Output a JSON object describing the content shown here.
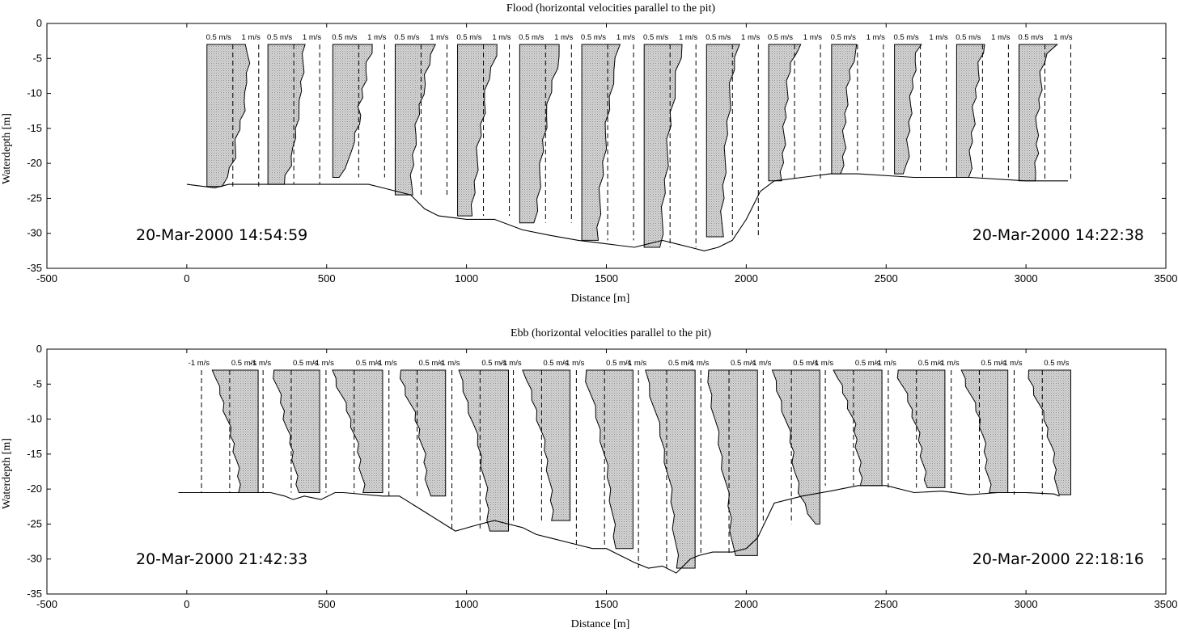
{
  "chart_data": [
    {
      "type": "area",
      "title": "Flood (horizontal velocities parallel to the pit)",
      "xlabel": "Distance [m]",
      "ylabel": "Waterdepth [m]",
      "xlim": [
        -500,
        3500
      ],
      "ylim": [
        -35,
        0
      ],
      "xticks": [
        "-500",
        "0",
        "500",
        "1000",
        "1500",
        "2000",
        "2500",
        "3000",
        "3500"
      ],
      "yticks": [
        "0",
        "-5",
        "-10",
        "-15",
        "-20",
        "-25",
        "-30",
        "-35"
      ],
      "grid": false,
      "start_time": "20-Mar-2000 14:54:59",
      "end_time": "20-Mar-2000 14:22:38",
      "bed_profile": {
        "x": [
          0,
          100,
          150,
          200,
          300,
          450,
          500,
          650,
          700,
          800,
          850,
          900,
          1000,
          1050,
          1100,
          1200,
          1300,
          1400,
          1500,
          1600,
          1650,
          1700,
          1750,
          1800,
          1850,
          1900,
          1950,
          2000,
          2050,
          2100,
          2200,
          2300,
          2400,
          2600,
          2800,
          3000,
          3100,
          3150
        ],
        "y": [
          -23,
          -23.5,
          -23,
          -23,
          -23,
          -23,
          -23,
          -23,
          -23.5,
          -24.5,
          -26.5,
          -27.5,
          -28,
          -28,
          -28,
          -29.5,
          -30.3,
          -31,
          -31.5,
          -32,
          -31.5,
          -31,
          -31.5,
          -32,
          -32.5,
          -32,
          -31,
          -28,
          -24,
          -22.5,
          -22,
          -21.5,
          -21.5,
          -22,
          -22,
          -22.5,
          -22.5,
          -22.5
        ]
      },
      "profiles": [
        {
          "x0": 72,
          "bottom": -23.3,
          "scale_labels": [
            "0.5 m/s",
            "1 m/s"
          ],
          "shape": [
            0.78,
            0.78,
            0.79,
            0.78,
            0.75,
            0.77,
            0.72,
            0.7,
            0.66,
            0.62,
            0.58,
            0.55,
            0.52,
            0.45,
            0.38,
            0.33
          ]
        },
        {
          "x0": 290,
          "bottom": -23.0,
          "scale_labels": [
            "0.5 m/s",
            "1 m/s"
          ],
          "shape": [
            0.7,
            0.7,
            0.68,
            0.66,
            0.65,
            0.63,
            0.64,
            0.6,
            0.56,
            0.55,
            0.52,
            0.52,
            0.45,
            0.42,
            0.35,
            0.3
          ]
        },
        {
          "x0": 522,
          "bottom": -22.0,
          "scale_labels": [
            "0.5 m/s",
            "1 m/s"
          ],
          "shape": [
            0.78,
            0.74,
            0.68,
            0.64,
            0.62,
            0.58,
            0.56,
            0.52,
            0.54,
            0.48,
            0.44,
            0.4,
            0.4,
            0.3,
            0.2,
            0.14
          ]
        },
        {
          "x0": 745,
          "bottom": -24.5,
          "scale_labels": [
            "0.5 m/s",
            "1 m/s"
          ],
          "shape": [
            0.74,
            0.7,
            0.65,
            0.6,
            0.58,
            0.52,
            0.48,
            0.45,
            0.42,
            0.4,
            0.37,
            0.35,
            0.34,
            0.33,
            0.32,
            0.3
          ]
        },
        {
          "x0": 968,
          "bottom": -27.5,
          "scale_labels": [
            "0.5 m/s",
            "1 m/s"
          ],
          "shape": [
            0.76,
            0.72,
            0.66,
            0.6,
            0.56,
            0.52,
            0.5,
            0.46,
            0.44,
            0.4,
            0.38,
            0.36,
            0.34,
            0.32,
            0.3,
            0.28
          ]
        },
        {
          "x0": 1190,
          "bottom": -28.5,
          "scale_labels": [
            "0.5 m/s",
            "1 m/s"
          ],
          "shape": [
            0.8,
            0.76,
            0.7,
            0.64,
            0.6,
            0.56,
            0.52,
            0.49,
            0.46,
            0.44,
            0.42,
            0.39,
            0.37,
            0.35,
            0.33,
            0.31
          ]
        },
        {
          "x0": 1412,
          "bottom": -31.0,
          "scale_labels": [
            "0.5 m/s",
            "1 m/s"
          ],
          "shape": [
            0.72,
            0.68,
            0.62,
            0.58,
            0.55,
            0.52,
            0.49,
            0.46,
            0.44,
            0.42,
            0.4,
            0.37,
            0.35,
            0.33,
            0.31,
            0.3
          ]
        },
        {
          "x0": 1635,
          "bottom": -32.0,
          "scale_labels": [
            "0.5 m/s",
            "1 m/s"
          ],
          "shape": [
            0.75,
            0.7,
            0.64,
            0.6,
            0.56,
            0.52,
            0.5,
            0.47,
            0.45,
            0.43,
            0.41,
            0.39,
            0.37,
            0.35,
            0.33,
            0.32
          ]
        },
        {
          "x0": 1858,
          "bottom": -30.5,
          "scale_labels": [
            "0.5 m/s",
            "1 m/s"
          ],
          "shape": [
            0.6,
            0.56,
            0.52,
            0.48,
            0.45,
            0.43,
            0.41,
            0.39,
            0.38,
            0.36,
            0.34,
            0.33,
            0.32,
            0.31,
            0.3,
            0.29
          ]
        },
        {
          "x0": 2080,
          "bottom": -22.5,
          "scale_labels": [
            "0.5 m/s",
            "1 m/s"
          ],
          "shape": [
            0.62,
            0.5,
            0.44,
            0.4,
            0.38,
            0.36,
            0.34,
            0.33,
            0.32,
            0.31,
            0.3,
            0.29,
            0.28,
            0.27,
            0.26,
            0.25
          ]
        },
        {
          "x0": 2305,
          "bottom": -21.5,
          "scale_labels": [
            "0.5 m/s",
            "1 m/s"
          ],
          "shape": [
            0.52,
            0.46,
            0.4,
            0.36,
            0.34,
            0.32,
            0.3,
            0.28,
            0.27,
            0.26,
            0.25,
            0.24,
            0.24,
            0.23,
            0.22,
            0.21
          ]
        },
        {
          "x0": 2530,
          "bottom": -21.5,
          "scale_labels": [
            "0.5 m/s",
            "1 m/s"
          ],
          "shape": [
            0.5,
            0.44,
            0.4,
            0.38,
            0.36,
            0.34,
            0.33,
            0.31,
            0.3,
            0.29,
            0.28,
            0.27,
            0.26,
            0.25,
            0.24,
            0.15
          ]
        },
        {
          "x0": 2752,
          "bottom": -22.0,
          "scale_labels": [
            "0.5 m/s",
            "1 m/s"
          ],
          "shape": [
            0.56,
            0.5,
            0.45,
            0.42,
            0.4,
            0.38,
            0.36,
            0.34,
            0.33,
            0.32,
            0.3,
            0.29,
            0.28,
            0.27,
            0.26,
            0.25
          ]
        },
        {
          "x0": 2975,
          "bottom": -22.5,
          "scale_labels": [
            "0.5 m/s",
            "1 m/s"
          ],
          "shape": [
            0.7,
            0.56,
            0.48,
            0.44,
            0.42,
            0.41,
            0.4,
            0.38,
            0.36,
            0.34,
            0.34,
            0.35,
            0.36,
            0.34,
            0.32,
            0.28
          ]
        }
      ]
    },
    {
      "type": "area",
      "title": "Ebb (horizontal velocities parallel to the pit)",
      "xlabel": "Distance [m]",
      "ylabel": "Waterdepth [m]",
      "xlim": [
        -500,
        3500
      ],
      "ylim": [
        -35,
        0
      ],
      "xticks": [
        "-500",
        "0",
        "500",
        "1000",
        "1500",
        "2000",
        "2500",
        "3000",
        "3500"
      ],
      "yticks": [
        "0",
        "-5",
        "-10",
        "-15",
        "-20",
        "-25",
        "-30",
        "-35"
      ],
      "grid": false,
      "start_time": "20-Mar-2000 21:42:33",
      "end_time": "20-Mar-2000 22:18:16",
      "bed_profile": {
        "x": [
          -30,
          50,
          150,
          250,
          300,
          350,
          380,
          420,
          480,
          530,
          560,
          700,
          760,
          860,
          960,
          1050,
          1100,
          1200,
          1250,
          1300,
          1400,
          1450,
          1500,
          1600,
          1650,
          1700,
          1750,
          1800,
          1830,
          1880,
          1950,
          2000,
          2040,
          2100,
          2200,
          2300,
          2400,
          2500,
          2600,
          2700,
          2800,
          2900,
          3000,
          3100,
          3120
        ],
        "y": [
          -20.5,
          -20.5,
          -20.5,
          -20.5,
          -20.5,
          -21,
          -21.5,
          -21,
          -21.5,
          -20.5,
          -20.5,
          -21,
          -21,
          -23.5,
          -26,
          -25,
          -24.5,
          -25.5,
          -26.5,
          -27,
          -28,
          -28.5,
          -28.5,
          -30.5,
          -31.3,
          -31,
          -32,
          -30,
          -29.5,
          -29,
          -29,
          -28.5,
          -27,
          -22,
          -21,
          -20.3,
          -19.5,
          -19.5,
          -20.5,
          -20.3,
          -20.8,
          -20.5,
          -20.5,
          -20.7,
          -21
        ]
      },
      "profiles": [
        {
          "x0": 70,
          "bottom": -20.5,
          "scale_labels": [
            "-1 m/s",
            "0.5 m/s"
          ],
          "shape": [
            0.85,
            0.82,
            0.78,
            0.72,
            0.68,
            0.64,
            0.6,
            0.56,
            0.52,
            0.48,
            0.45,
            0.42,
            0.4,
            0.38,
            0.36,
            0.34
          ]
        },
        {
          "x0": 290,
          "bottom": -20.5,
          "scale_labels": [
            "-1 m/s",
            "0.5 m/s"
          ],
          "shape": [
            0.9,
            0.86,
            0.82,
            0.78,
            0.74,
            0.7,
            0.67,
            0.64,
            0.6,
            0.56,
            0.53,
            0.5,
            0.48,
            0.46,
            0.44,
            0.42
          ]
        },
        {
          "x0": 515,
          "bottom": -20.5,
          "scale_labels": [
            "-1 m/s",
            "0.5 m/s"
          ],
          "shape": [
            0.95,
            0.92,
            0.86,
            0.8,
            0.74,
            0.68,
            0.63,
            0.58,
            0.54,
            0.5,
            0.47,
            0.44,
            0.42,
            0.4,
            0.38,
            0.36
          ]
        },
        {
          "x0": 740,
          "bottom": -21.0,
          "scale_labels": [
            "-1 m/s",
            "0.5 m/s"
          ],
          "shape": [
            0.9,
            0.86,
            0.8,
            0.74,
            0.68,
            0.62,
            0.57,
            0.52,
            0.48,
            0.45,
            0.42,
            0.4,
            0.38,
            0.36,
            0.34,
            0.32
          ]
        },
        {
          "x0": 965,
          "bottom": -26.0,
          "scale_labels": [
            "-1 m/s",
            "0.5 m/s"
          ],
          "shape": [
            0.96,
            0.92,
            0.86,
            0.8,
            0.74,
            0.68,
            0.63,
            0.58,
            0.54,
            0.5,
            0.47,
            0.44,
            0.42,
            0.4,
            0.38,
            0.36
          ]
        },
        {
          "x0": 1185,
          "bottom": -24.5,
          "scale_labels": [
            "-1 m/s",
            "0.5 m/s"
          ],
          "shape": [
            0.88,
            0.84,
            0.78,
            0.72,
            0.66,
            0.61,
            0.56,
            0.52,
            0.48,
            0.45,
            0.42,
            0.4,
            0.38,
            0.36,
            0.34,
            0.32
          ]
        },
        {
          "x0": 1410,
          "bottom": -28.5,
          "scale_labels": [
            "-1 m/s",
            "0.5 m/s"
          ],
          "shape": [
            0.92,
            0.88,
            0.82,
            0.76,
            0.7,
            0.65,
            0.6,
            0.56,
            0.52,
            0.48,
            0.45,
            0.42,
            0.4,
            0.38,
            0.36,
            0.35
          ]
        },
        {
          "x0": 1632,
          "bottom": -31.3,
          "scale_labels": [
            "-1 m/s",
            "0.5 m/s"
          ],
          "shape": [
            0.94,
            0.9,
            0.84,
            0.78,
            0.72,
            0.66,
            0.61,
            0.56,
            0.52,
            0.48,
            0.45,
            0.42,
            0.4,
            0.38,
            0.36,
            0.34
          ]
        },
        {
          "x0": 1855,
          "bottom": -29.5,
          "scale_labels": [
            "-1 m/s",
            "0.5 m/s"
          ],
          "shape": [
            0.98,
            0.94,
            0.9,
            0.86,
            0.82,
            0.78,
            0.74,
            0.7,
            0.66,
            0.62,
            0.58,
            0.55,
            0.52,
            0.5,
            0.48,
            0.46
          ]
        },
        {
          "x0": 2078,
          "bottom": -25.0,
          "scale_labels": [
            "-1 m/s",
            "0.5 m/s"
          ],
          "shape": [
            0.92,
            0.88,
            0.82,
            0.76,
            0.7,
            0.65,
            0.6,
            0.56,
            0.52,
            0.5,
            0.48,
            0.44,
            0.4,
            0.3,
            0.2,
            0.08
          ]
        },
        {
          "x0": 2300,
          "bottom": -19.5,
          "scale_labels": [
            "-1 m/s",
            "0.5 m/s"
          ],
          "shape": [
            0.9,
            0.86,
            0.8,
            0.74,
            0.68,
            0.63,
            0.58,
            0.54,
            0.52,
            0.5,
            0.48,
            0.46,
            0.44,
            0.42,
            0.4,
            0.38
          ]
        },
        {
          "x0": 2525,
          "bottom": -19.8,
          "scale_labels": [
            "-1 m/s",
            "0.5 m/s"
          ],
          "shape": [
            0.92,
            0.88,
            0.82,
            0.76,
            0.7,
            0.65,
            0.6,
            0.56,
            0.52,
            0.49,
            0.46,
            0.44,
            0.42,
            0.4,
            0.38,
            0.36
          ]
        },
        {
          "x0": 2750,
          "bottom": -20.5,
          "scale_labels": [
            "-1 m/s",
            "0.5 m/s"
          ],
          "shape": [
            0.88,
            0.84,
            0.78,
            0.72,
            0.66,
            0.6,
            0.55,
            0.51,
            0.48,
            0.46,
            0.44,
            0.42,
            0.4,
            0.38,
            0.36,
            0.34
          ]
        },
        {
          "x0": 2975,
          "bottom": -20.8,
          "scale_labels": [
            "-1 m/s",
            "0.5 m/s"
          ],
          "shape": [
            0.85,
            0.8,
            0.74,
            0.68,
            0.62,
            0.56,
            0.5,
            0.46,
            0.42,
            0.38,
            0.35,
            0.32,
            0.3,
            0.28,
            0.27,
            0.26
          ]
        }
      ]
    }
  ]
}
